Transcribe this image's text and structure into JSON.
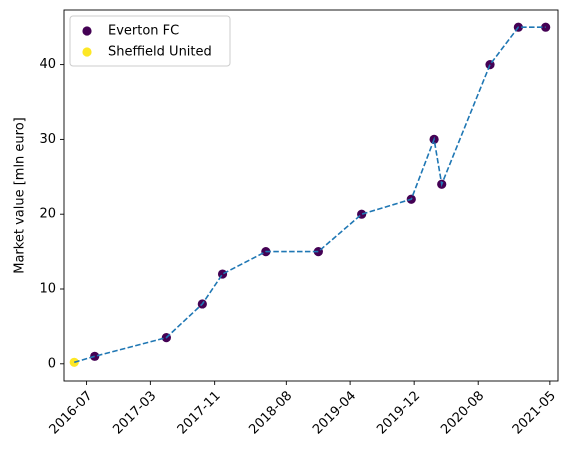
{
  "chart_data": {
    "type": "scatter",
    "xlabel": "",
    "ylabel": "Market value [mln euro]",
    "ylim": [
      -2.3,
      47.3
    ],
    "xlim": [
      "2016-04-06",
      "2021-06-01"
    ],
    "x_ticks": [
      "2016-07",
      "2017-03",
      "2017-11",
      "2018-08",
      "2019-04",
      "2019-12",
      "2020-08",
      "2021-05"
    ],
    "y_ticks": [
      0,
      10,
      20,
      30,
      40
    ],
    "legend_position": "upper-left",
    "grid": false,
    "colors": {
      "everton": "#440154",
      "sheffield": "#fde725",
      "line": "#1f77b4"
    },
    "series": [
      {
        "name": "Everton FC",
        "marker_color": "#440154",
        "points": [
          {
            "x": "2016-08-01",
            "y": 1
          },
          {
            "x": "2017-05-01",
            "y": 3.5
          },
          {
            "x": "2017-09-15",
            "y": 8
          },
          {
            "x": "2017-12-01",
            "y": 12
          },
          {
            "x": "2018-05-15",
            "y": 15
          },
          {
            "x": "2018-12-01",
            "y": 15
          },
          {
            "x": "2019-05-15",
            "y": 20
          },
          {
            "x": "2019-11-20",
            "y": 22
          },
          {
            "x": "2020-02-15",
            "y": 30
          },
          {
            "x": "2020-03-15",
            "y": 24
          },
          {
            "x": "2020-09-15",
            "y": 40
          },
          {
            "x": "2021-01-01",
            "y": 45
          },
          {
            "x": "2021-04-15",
            "y": 45
          }
        ]
      },
      {
        "name": "Sheffield United",
        "marker_color": "#fde725",
        "points": [
          {
            "x": "2016-05-15",
            "y": 0.2
          }
        ]
      }
    ]
  }
}
